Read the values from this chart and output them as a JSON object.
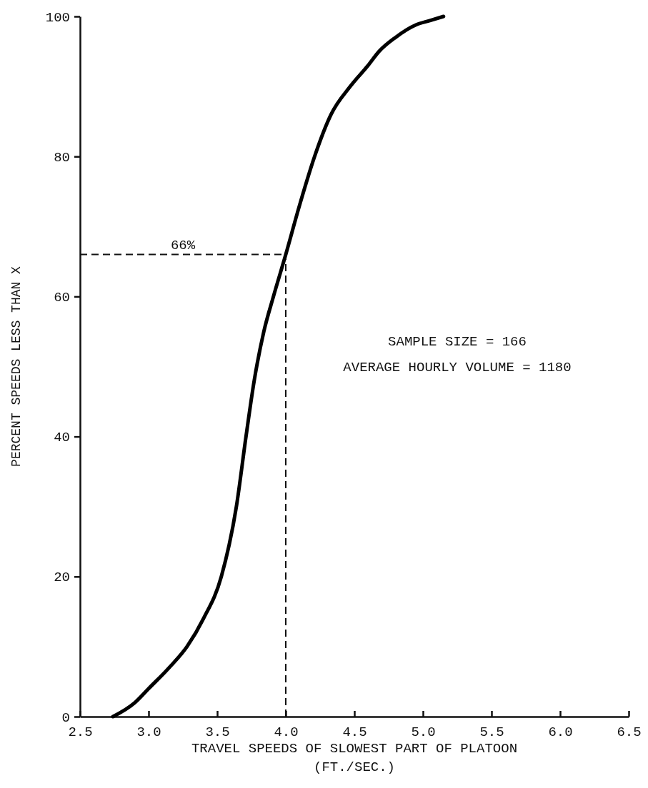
{
  "chart_data": {
    "type": "line",
    "xlabel": "TRAVEL SPEEDS OF SLOWEST PART OF PLATOON\n(FT./SEC.)",
    "ylabel": "PERCENT SPEEDS LESS THAN X",
    "x": [
      2.74,
      2.9,
      3.0,
      3.15,
      3.28,
      3.4,
      3.53,
      3.64,
      3.71,
      3.77,
      3.84,
      3.91,
      4.0,
      4.1,
      4.21,
      4.33,
      4.47,
      4.6,
      4.68,
      4.8,
      4.95,
      5.05,
      5.15
    ],
    "series": [
      {
        "color": "#000000",
        "values": [
          0,
          2,
          4,
          7,
          10,
          14,
          20,
          30,
          40,
          48,
          55,
          60,
          66,
          73,
          80,
          86,
          90,
          93,
          95,
          97,
          98.8,
          99.4,
          100
        ]
      }
    ],
    "xlim": [
      2.5,
      6.5
    ],
    "ylim": [
      0,
      100
    ],
    "xticks": [
      {
        "value": 2.5,
        "label": "2.5"
      },
      {
        "value": 3,
        "label": "3.0"
      },
      {
        "value": 3.5,
        "label": "3.5"
      },
      {
        "value": 4,
        "label": "4.0"
      },
      {
        "value": 4.5,
        "label": "4.5"
      },
      {
        "value": 5,
        "label": "5.0"
      },
      {
        "value": 5.5,
        "label": "5.5"
      },
      {
        "value": 6,
        "label": "6.0"
      },
      {
        "value": 6.5,
        "label": "6.5"
      }
    ],
    "yticks": [
      0,
      20,
      40,
      60,
      80,
      100
    ],
    "ref_lines": [
      {
        "axis": "y",
        "value": 66,
        "label": "66%",
        "line_style": "dashed"
      },
      {
        "axis": "x",
        "value": 4,
        "line_style": "dashed"
      }
    ],
    "annotations": [
      "SAMPLE SIZE = 166",
      "AVERAGE HOURLY VOLUME = 1180"
    ],
    "grid": false,
    "marker": "none",
    "line_style": "solid"
  }
}
